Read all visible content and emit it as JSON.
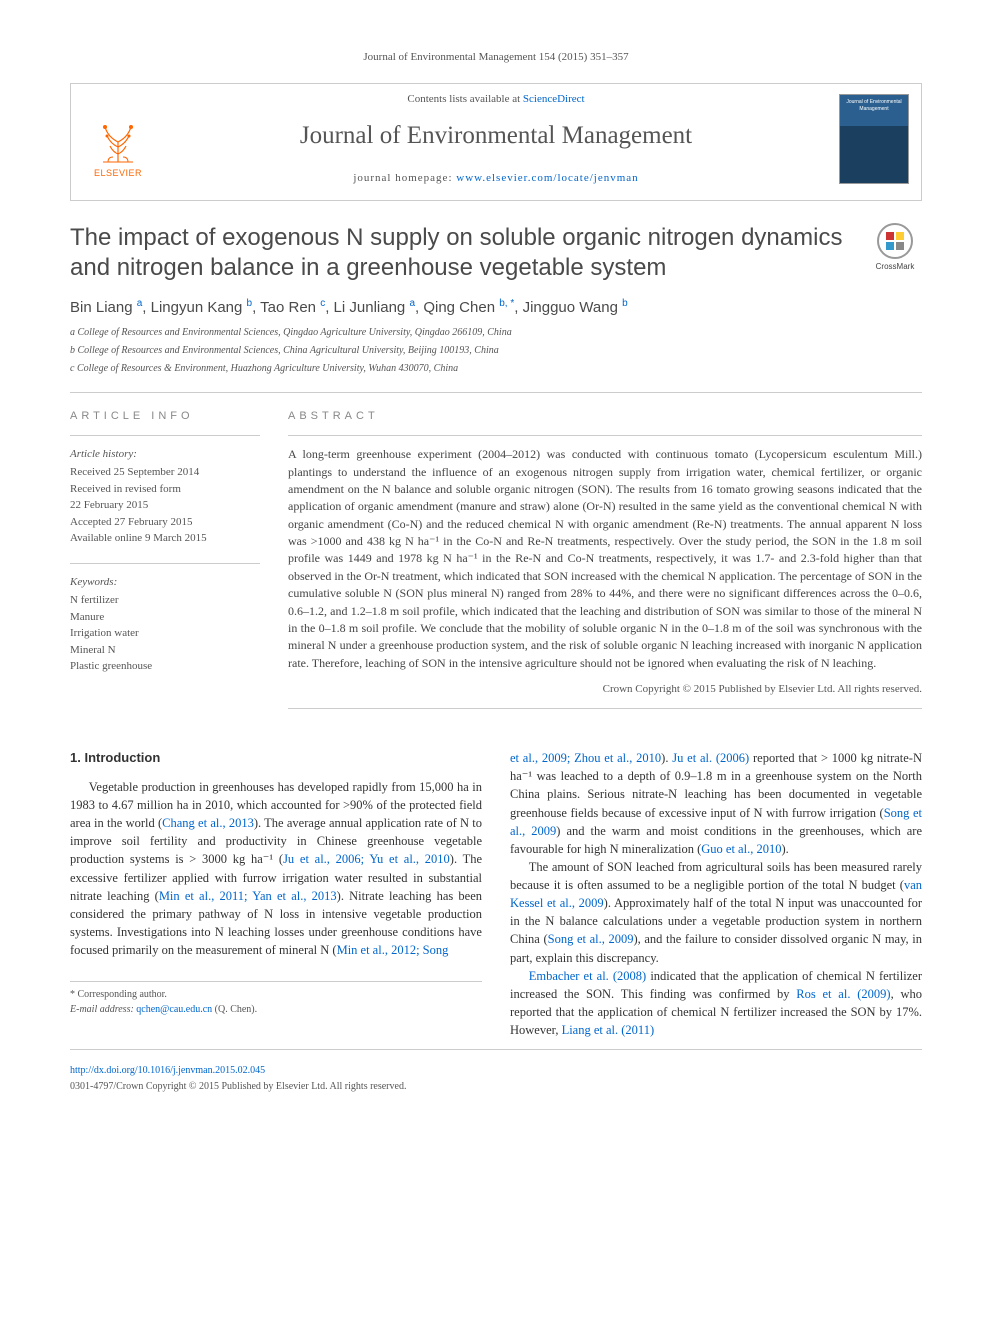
{
  "header": {
    "citation": "Journal of Environmental Management 154 (2015) 351–357"
  },
  "banner": {
    "publisher": "ELSEVIER",
    "contents_prefix": "Contents lists available at ",
    "contents_link": "ScienceDirect",
    "journal_name": "Journal of Environmental Management",
    "homepage_prefix": "journal homepage: ",
    "homepage_link": "www.elsevier.com/locate/jenvman",
    "cover_label": "Journal of Environmental Management"
  },
  "crossmark": "CrossMark",
  "title": "The impact of exogenous N supply on soluble organic nitrogen dynamics and nitrogen balance in a greenhouse vegetable system",
  "authors_html": "Bin Liang <sup>a</sup>, Lingyun Kang <sup>b</sup>, Tao Ren <sup>c</sup>, Li Junliang <sup>a</sup>, Qing Chen <sup>b, *</sup>, Jingguo Wang <sup>b</sup>",
  "affiliations": [
    "a College of Resources and Environmental Sciences, Qingdao Agriculture University, Qingdao 266109, China",
    "b College of Resources and Environmental Sciences, China Agricultural University, Beijing 100193, China",
    "c College of Resources & Environment, Huazhong Agriculture University, Wuhan 430070, China"
  ],
  "article_info": {
    "heading": "ARTICLE INFO",
    "history_label": "Article history:",
    "history": [
      "Received 25 September 2014",
      "Received in revised form",
      "22 February 2015",
      "Accepted 27 February 2015",
      "Available online 9 March 2015"
    ],
    "keywords_label": "Keywords:",
    "keywords": [
      "N fertilizer",
      "Manure",
      "Irrigation water",
      "Mineral N",
      "Plastic greenhouse"
    ]
  },
  "abstract": {
    "heading": "ABSTRACT",
    "text": "A long-term greenhouse experiment (2004–2012) was conducted with continuous tomato (Lycopersicum esculentum Mill.) plantings to understand the influence of an exogenous nitrogen supply from irrigation water, chemical fertilizer, or organic amendment on the N balance and soluble organic nitrogen (SON). The results from 16 tomato growing seasons indicated that the application of organic amendment (manure and straw) alone (Or-N) resulted in the same yield as the conventional chemical N with organic amendment (Co-N) and the reduced chemical N with organic amendment (Re-N) treatments. The annual apparent N loss was >1000 and 438 kg N ha⁻¹ in the Co-N and Re-N treatments, respectively. Over the study period, the SON in the 1.8 m soil profile was 1449 and 1978 kg N ha⁻¹ in the Re-N and Co-N treatments, respectively, it was 1.7- and 2.3-fold higher than that observed in the Or-N treatment, which indicated that SON increased with the chemical N application. The percentage of SON in the cumulative soluble N (SON plus mineral N) ranged from 28% to 44%, and there were no significant differences across the 0–0.6, 0.6–1.2, and 1.2–1.8 m soil profile, which indicated that the leaching and distribution of SON was similar to those of the mineral N in the 0–1.8 m soil profile. We conclude that the mobility of soluble organic N in the 0–1.8 m of the soil was synchronous with the mineral N under a greenhouse production system, and the risk of soluble organic N leaching increased with inorganic N application rate. Therefore, leaching of SON in the intensive agriculture should not be ignored when evaluating the risk of N leaching.",
    "copyright": "Crown Copyright © 2015 Published by Elsevier Ltd. All rights reserved."
  },
  "body": {
    "section_number": "1.",
    "section_title": "Introduction",
    "p1_a": "Vegetable production in greenhouses has developed rapidly from 15,000 ha in 1983 to 4.67 million ha in 2010, which accounted for >90% of the protected field area in the world (",
    "p1_l1": "Chang et al., 2013",
    "p1_b": "). The average annual application rate of N to improve soil fertility and productivity in Chinese greenhouse vegetable production systems is > 3000 kg ha⁻¹ (",
    "p1_l2": "Ju et al., 2006; Yu et al., 2010",
    "p1_c": "). The excessive fertilizer applied with furrow irrigation water resulted in substantial nitrate leaching (",
    "p1_l3": "Min et al., 2011; Yan et al., 2013",
    "p1_d": "). Nitrate leaching has been considered the primary pathway of N loss in intensive vegetable production systems. Investigations into N leaching losses under greenhouse conditions have focused primarily on the measurement of mineral N (",
    "p1_l4": "Min et al., 2012; Song",
    "p1_cont_l": "et al., 2009; Zhou et al., 2010",
    "p1_e": "). ",
    "p1_l5": "Ju et al. (2006)",
    "p1_f": " reported that > 1000 kg nitrate-N ha⁻¹ was leached to a depth of 0.9–1.8 m in a greenhouse system on the North China plains. Serious nitrate-N leaching has been documented in vegetable greenhouse fields because of excessive input of N with furrow irrigation (",
    "p1_l6": "Song et al., 2009",
    "p1_g": ") and the warm and moist conditions in the greenhouses, which are favourable for high N mineralization (",
    "p1_l7": "Guo et al., 2010",
    "p1_h": ").",
    "p2_a": "The amount of SON leached from agricultural soils has been measured rarely because it is often assumed to be a negligible portion of the total N budget (",
    "p2_l1": "van Kessel et al., 2009",
    "p2_b": "). Approximately half of the total N input was unaccounted for in the N balance calculations under a vegetable production system in northern China (",
    "p2_l2": "Song et al., 2009",
    "p2_c": "), and the failure to consider dissolved organic N may, in part, explain this discrepancy.",
    "p3_l1": "Embacher et al. (2008)",
    "p3_a": " indicated that the application of chemical N fertilizer increased the SON. This finding was confirmed by ",
    "p3_l2": "Ros et al. (2009)",
    "p3_b": ", who reported that the application of chemical N fertilizer increased the SON by 17%. However, ",
    "p3_l3": "Liang et al. (2011)"
  },
  "footnote": {
    "corr": "* Corresponding author.",
    "email_label": "E-mail address: ",
    "email": "qchen@cau.edu.cn",
    "email_who": " (Q. Chen)."
  },
  "footer": {
    "doi": "http://dx.doi.org/10.1016/j.jenvman.2015.02.045",
    "issn": "0301-4797/Crown Copyright © 2015 Published by Elsevier Ltd. All rights reserved."
  }
}
